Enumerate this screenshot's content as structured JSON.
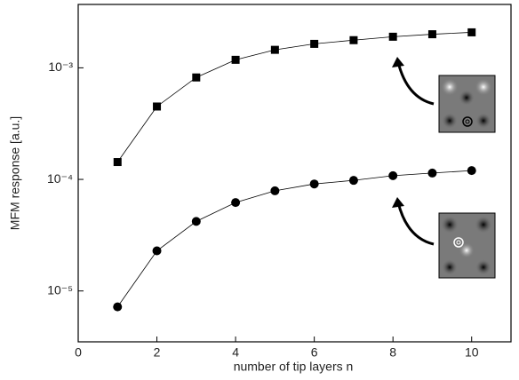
{
  "chart_data": {
    "type": "line",
    "x_label": "number of tip layers n",
    "y_label": "MFM response [a.u.]",
    "x": [
      1,
      2,
      3,
      4,
      5,
      6,
      7,
      8,
      9,
      10
    ],
    "series": [
      {
        "color": "#000000",
        "marker": "square",
        "values": [
          0.000143,
          0.00045,
          0.00082,
          0.00118,
          0.00145,
          0.00164,
          0.00177,
          0.0019,
          0.002,
          0.00208
        ]
      },
      {
        "color": "#000000",
        "marker": "circle",
        "values": [
          7.2e-06,
          2.29e-05,
          4.2e-05,
          6.2e-05,
          7.9e-05,
          9.1e-05,
          9.8e-05,
          0.000108,
          0.000114,
          0.00012
        ]
      }
    ],
    "xlim": [
      0,
      11
    ],
    "xticks": [
      0,
      2,
      4,
      6,
      8,
      10
    ],
    "ylim": [
      3.5e-06,
      0.0037
    ],
    "log_y": true,
    "yticks": [
      {
        "value": 1e-05,
        "label": "10⁻⁵"
      },
      {
        "value": 0.0001,
        "label": "10⁻⁴"
      },
      {
        "value": 0.001,
        "label": "10⁻³"
      }
    ]
  }
}
